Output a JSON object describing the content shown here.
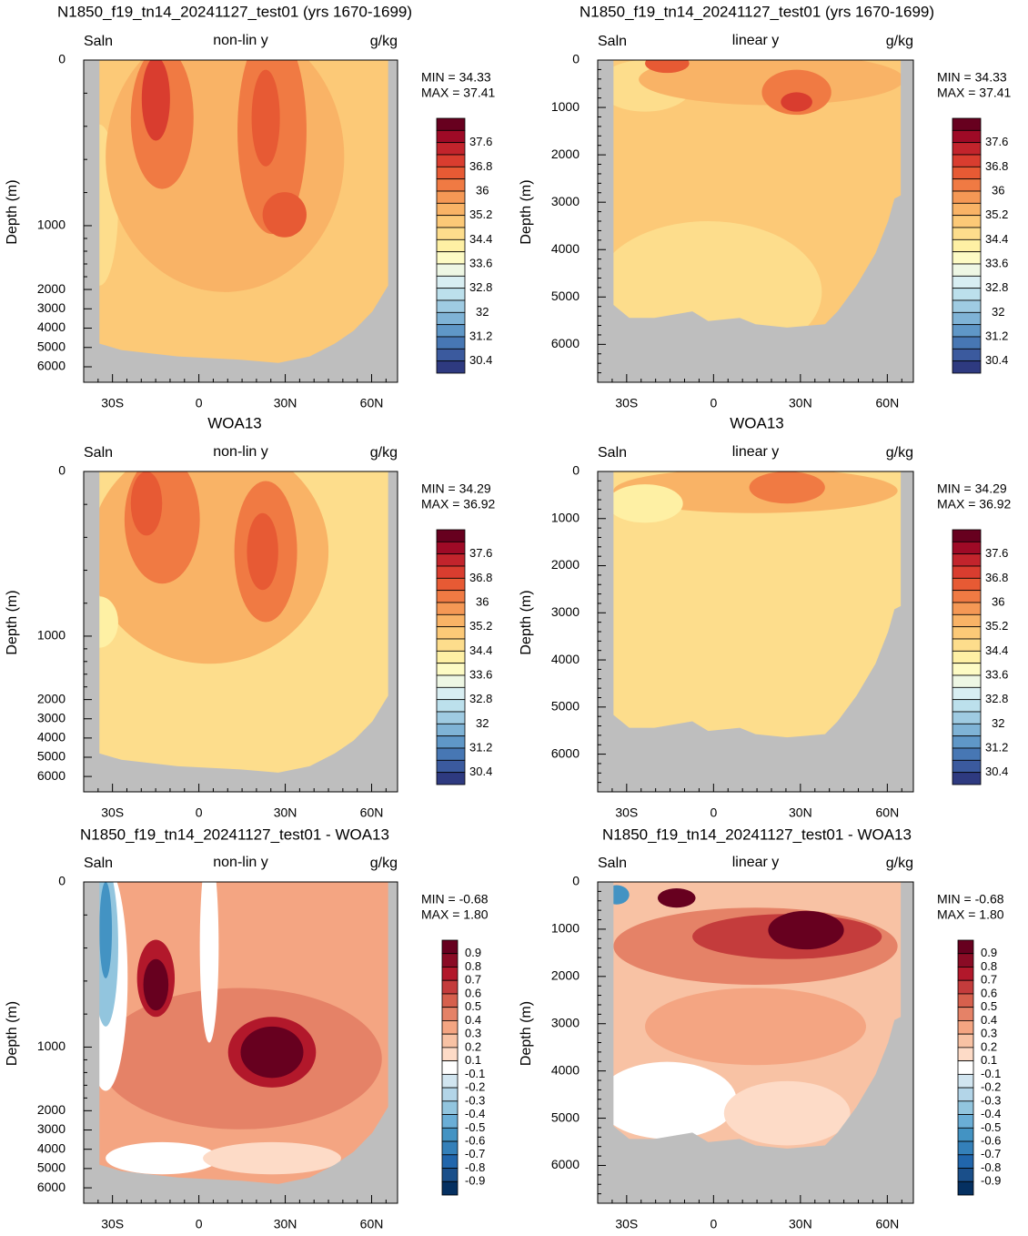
{
  "panels": [
    {
      "title": "N1850_f19_tn14_20241127_test01 (yrs 1670-1699)",
      "left_label": "Saln",
      "center_label": "non-lin y",
      "right_label": "g/kg",
      "min_label": "MIN =  34.33",
      "max_label": "MAX =  37.41",
      "y_label": "Depth (m)",
      "y_scale": "non-linear",
      "ylim": [
        0,
        6800
      ],
      "yticks": [
        0,
        1000,
        2000,
        3000,
        4000,
        5000,
        6000
      ],
      "xlim": [
        -40,
        69
      ],
      "xticks": [
        {
          "value": -30,
          "label": "30S"
        },
        0,
        {
          "value": 30,
          "label": "30N"
        },
        {
          "value": 60,
          "label": "60N"
        }
      ],
      "colorbar": [
        37.6,
        36.8,
        36,
        35.2,
        34.4,
        33.6,
        32.8,
        32,
        31.2,
        30.4
      ]
    },
    {
      "title": "N1850_f19_tn14_20241127_test01 (yrs 1670-1699)",
      "left_label": "Saln",
      "center_label": "linear y",
      "right_label": "g/kg",
      "min_label": "MIN =  34.33",
      "max_label": "MAX =  37.41",
      "y_label": "Depth (m)",
      "y_scale": "linear",
      "ylim": [
        0,
        6800
      ],
      "yticks": [
        0,
        1000,
        2000,
        3000,
        4000,
        5000,
        6000
      ],
      "xlim": [
        -40,
        69
      ],
      "xticks": [
        {
          "value": -30,
          "label": "30S"
        },
        0,
        {
          "value": 30,
          "label": "30N"
        },
        {
          "value": 60,
          "label": "60N"
        }
      ],
      "colorbar": [
        37.6,
        36.8,
        36,
        35.2,
        34.4,
        33.6,
        32.8,
        32,
        31.2,
        30.4
      ]
    },
    {
      "title": "WOA13",
      "left_label": "Saln",
      "center_label": "non-lin y",
      "right_label": "g/kg",
      "min_label": "MIN =  34.29",
      "max_label": "MAX =  36.92",
      "y_label": "Depth (m)",
      "y_scale": "non-linear",
      "ylim": [
        0,
        6800
      ],
      "yticks": [
        0,
        1000,
        2000,
        3000,
        4000,
        5000,
        6000
      ],
      "xlim": [
        -40,
        69
      ],
      "xticks": [
        {
          "value": -30,
          "label": "30S"
        },
        0,
        {
          "value": 30,
          "label": "30N"
        },
        {
          "value": 60,
          "label": "60N"
        }
      ],
      "colorbar": [
        37.6,
        36.8,
        36,
        35.2,
        34.4,
        33.6,
        32.8,
        32,
        31.2,
        30.4
      ]
    },
    {
      "title": "WOA13",
      "left_label": "Saln",
      "center_label": "linear y",
      "right_label": "g/kg",
      "min_label": "MIN =  34.29",
      "max_label": "MAX =  36.92",
      "y_label": "Depth (m)",
      "y_scale": "linear",
      "ylim": [
        0,
        6800
      ],
      "yticks": [
        0,
        1000,
        2000,
        3000,
        4000,
        5000,
        6000
      ],
      "xlim": [
        -40,
        69
      ],
      "xticks": [
        {
          "value": -30,
          "label": "30S"
        },
        0,
        {
          "value": 30,
          "label": "30N"
        },
        {
          "value": 60,
          "label": "60N"
        }
      ],
      "colorbar": [
        37.6,
        36.8,
        36,
        35.2,
        34.4,
        33.6,
        32.8,
        32,
        31.2,
        30.4
      ]
    },
    {
      "title": "N1850_f19_tn14_20241127_test01 - WOA13",
      "left_label": "Saln",
      "center_label": "non-lin y",
      "right_label": "g/kg",
      "min_label": "MIN =  -0.68",
      "max_label": "MAX =   1.80",
      "y_label": "Depth (m)",
      "y_scale": "non-linear",
      "ylim": [
        0,
        6800
      ],
      "yticks": [
        0,
        1000,
        2000,
        3000,
        4000,
        5000,
        6000
      ],
      "xlim": [
        -40,
        69
      ],
      "xticks": [
        {
          "value": -30,
          "label": "30S"
        },
        0,
        {
          "value": 30,
          "label": "30N"
        },
        {
          "value": 60,
          "label": "60N"
        }
      ],
      "colorbar": [
        0.9,
        0.8,
        0.7,
        0.6,
        0.5,
        0.4,
        0.3,
        0.2,
        0.1,
        -0.1,
        -0.2,
        -0.3,
        -0.4,
        -0.5,
        -0.6,
        -0.7,
        -0.8,
        -0.9
      ]
    },
    {
      "title": "N1850_f19_tn14_20241127_test01 - WOA13",
      "left_label": "Saln",
      "center_label": "linear y",
      "right_label": "g/kg",
      "min_label": "MIN =  -0.68",
      "max_label": "MAX =   1.80",
      "y_label": "Depth (m)",
      "y_scale": "linear",
      "ylim": [
        0,
        6800
      ],
      "yticks": [
        0,
        1000,
        2000,
        3000,
        4000,
        5000,
        6000
      ],
      "xlim": [
        -40,
        69
      ],
      "xticks": [
        {
          "value": -30,
          "label": "30S"
        },
        0,
        {
          "value": 30,
          "label": "30N"
        },
        {
          "value": 60,
          "label": "60N"
        }
      ],
      "colorbar": [
        0.9,
        0.8,
        0.7,
        0.6,
        0.5,
        0.4,
        0.3,
        0.2,
        0.1,
        -0.1,
        -0.2,
        -0.3,
        -0.4,
        -0.5,
        -0.6,
        -0.7,
        -0.8,
        -0.9
      ]
    }
  ]
}
